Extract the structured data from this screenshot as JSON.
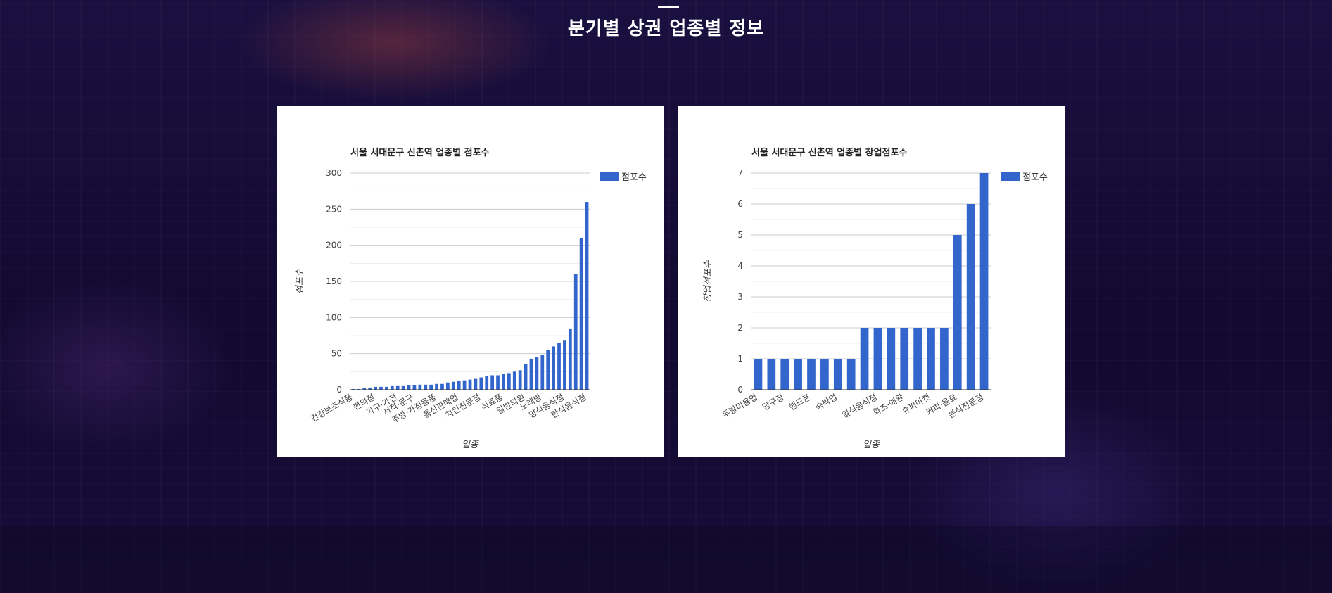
{
  "page": {
    "section_title": "분기별 상권 업종별 정보"
  },
  "colors": {
    "bar": "#3366cc",
    "grid": "#cccccc",
    "background": "#140a2e"
  },
  "chart_data": [
    {
      "type": "bar",
      "title": "서울 서대문구 신촌역 업종별 점포수",
      "xlabel": "업종",
      "ylabel": "점포수",
      "ylim": [
        0,
        300
      ],
      "yticks": [
        0,
        50,
        100,
        150,
        200,
        250,
        300
      ],
      "legend_position": "right",
      "grid": true,
      "shown_category_labels": [
        "건강보조식품",
        "편의점",
        "가구·가전",
        "서적·문구",
        "주방·가정용품",
        "통신판매업",
        "치킨전문점",
        "식료품",
        "일반의원",
        "노래방",
        "양식음식점",
        "한식음식점"
      ],
      "series": [
        {
          "name": "점포수",
          "values": [
            1,
            1,
            2,
            3,
            4,
            4,
            4,
            5,
            5,
            5,
            6,
            6,
            7,
            7,
            7,
            8,
            8,
            10,
            11,
            12,
            13,
            14,
            15,
            17,
            19,
            20,
            20,
            22,
            23,
            25,
            27,
            36,
            43,
            45,
            48,
            55,
            60,
            65,
            68,
            84,
            160,
            210,
            260
          ]
        }
      ]
    },
    {
      "type": "bar",
      "title": "서울 서대문구 신촌역 업종별 창업점포수",
      "xlabel": "업종",
      "ylabel": "창업점포수",
      "ylim": [
        0,
        7
      ],
      "yticks": [
        0,
        1,
        2,
        3,
        4,
        5,
        6,
        7
      ],
      "legend_position": "right",
      "grid": true,
      "shown_category_labels": [
        "두발미용업",
        "당구장",
        "핸드폰",
        "숙박업",
        "일식음식점",
        "화초·애완",
        "슈퍼마켓",
        "커피·음료",
        "분식전문점"
      ],
      "series": [
        {
          "name": "점포수",
          "values": [
            1,
            1,
            1,
            1,
            1,
            1,
            1,
            1,
            2,
            2,
            2,
            2,
            2,
            2,
            2,
            5,
            6,
            7
          ]
        }
      ]
    }
  ]
}
